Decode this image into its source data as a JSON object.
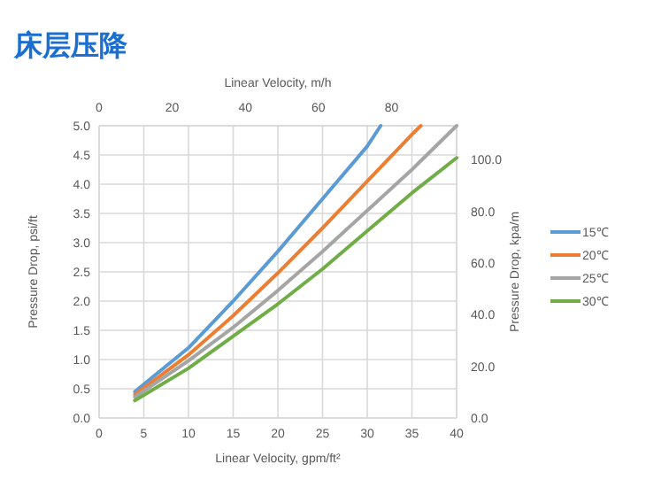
{
  "chart_data": {
    "type": "line",
    "title": "床层压降",
    "xlabel": "Linear Velocity, gpm/ft²",
    "x2label": "Linear Velocity, m/h",
    "ylabel": "Pressure Drop, psi/ft",
    "y2label": "Pressure Drop, kpa/m",
    "xlim": [
      0,
      40
    ],
    "xticks": [
      0,
      5,
      10,
      15,
      20,
      25,
      30,
      35,
      40
    ],
    "x2lim": [
      0,
      97.8
    ],
    "x2ticks": [
      0,
      20,
      40,
      60,
      80
    ],
    "ylim": [
      0,
      5
    ],
    "yticks": [
      {
        "value": 0,
        "label": "0.0"
      },
      {
        "value": 0.5,
        "label": "0.5"
      },
      {
        "value": 1,
        "label": "1.0"
      },
      {
        "value": 1.5,
        "label": "1.5"
      },
      {
        "value": 2,
        "label": "2.0"
      },
      {
        "value": 2.5,
        "label": "2.5"
      },
      {
        "value": 3,
        "label": "3.0"
      },
      {
        "value": 3.5,
        "label": "3.5"
      },
      {
        "value": 4,
        "label": "4.0"
      },
      {
        "value": 4.5,
        "label": "4.5"
      },
      {
        "value": 5,
        "label": "5.0"
      }
    ],
    "y2lim": [
      0,
      113.1
    ],
    "y2ticks": [
      {
        "value": 0,
        "label": "0.0"
      },
      {
        "value": 20,
        "label": "20.0"
      },
      {
        "value": 40,
        "label": "40.0"
      },
      {
        "value": 60,
        "label": "60.0"
      },
      {
        "value": 80,
        "label": "80.0"
      },
      {
        "value": 100,
        "label": "100.0"
      }
    ],
    "grid": true,
    "legend": "right",
    "marker": "none",
    "line_style": "solid",
    "series": [
      {
        "name": "15℃",
        "color": "#5b9bd5",
        "x": [
          4,
          10,
          15,
          20,
          25,
          30,
          31.5
        ],
        "values": [
          0.45,
          1.2,
          2.0,
          2.85,
          3.75,
          4.65,
          5.0
        ]
      },
      {
        "name": "20℃",
        "color": "#ed7d31",
        "x": [
          4,
          10,
          15,
          20,
          25,
          30,
          35,
          36
        ],
        "values": [
          0.4,
          1.08,
          1.75,
          2.48,
          3.25,
          4.05,
          4.85,
          5.0
        ]
      },
      {
        "name": "25℃",
        "color": "#a5a5a5",
        "x": [
          4,
          10,
          15,
          20,
          25,
          30,
          35,
          40
        ],
        "values": [
          0.36,
          0.98,
          1.55,
          2.18,
          2.85,
          3.55,
          4.25,
          5.0
        ]
      },
      {
        "name": "30℃",
        "color": "#70ad47",
        "x": [
          4,
          10,
          15,
          20,
          25,
          30,
          35,
          40
        ],
        "values": [
          0.3,
          0.85,
          1.4,
          1.95,
          2.55,
          3.2,
          3.85,
          4.45
        ]
      }
    ]
  }
}
